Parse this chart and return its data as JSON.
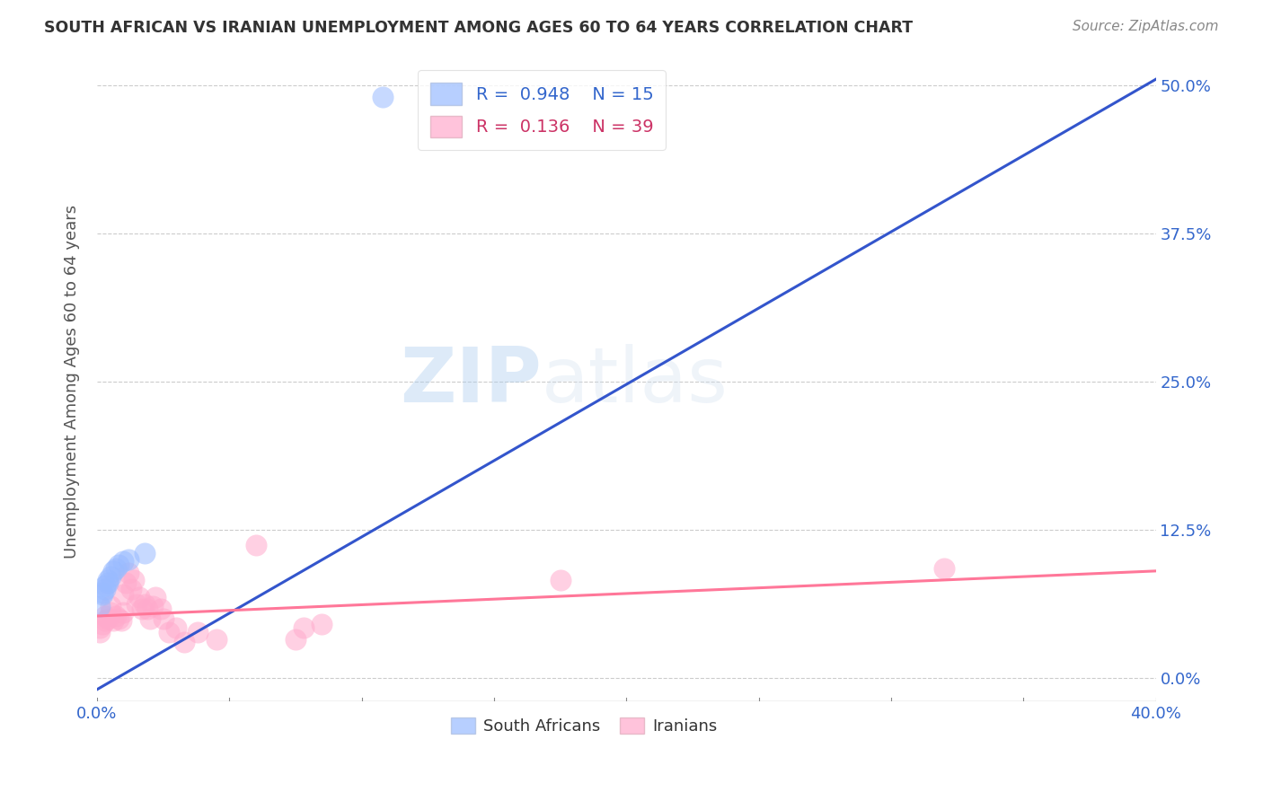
{
  "title": "SOUTH AFRICAN VS IRANIAN UNEMPLOYMENT AMONG AGES 60 TO 64 YEARS CORRELATION CHART",
  "source": "Source: ZipAtlas.com",
  "ylabel": "Unemployment Among Ages 60 to 64 years",
  "xlim": [
    0.0,
    0.4
  ],
  "ylim": [
    -0.02,
    0.52
  ],
  "xtick_vals": [
    0.0,
    0.4
  ],
  "xtick_labels": [
    "0.0%",
    "40.0%"
  ],
  "ytick_vals": [
    0.0,
    0.125,
    0.25,
    0.375,
    0.5
  ],
  "ytick_labels": [
    "0.0%",
    "12.5%",
    "25.0%",
    "37.5%",
    "50.0%"
  ],
  "grid_ytick_vals": [
    0.0,
    0.125,
    0.25,
    0.375,
    0.5
  ],
  "watermark_zip": "ZIP",
  "watermark_atlas": "atlas",
  "sa_color": "#99bbff",
  "ir_color": "#ffaacc",
  "sa_line_color": "#3355cc",
  "ir_line_color": "#ff7799",
  "sa_points": [
    [
      0.001,
      0.06
    ],
    [
      0.002,
      0.07
    ],
    [
      0.002,
      0.072
    ],
    [
      0.003,
      0.075
    ],
    [
      0.003,
      0.078
    ],
    [
      0.004,
      0.08
    ],
    [
      0.004,
      0.082
    ],
    [
      0.005,
      0.085
    ],
    [
      0.006,
      0.09
    ],
    [
      0.007,
      0.092
    ],
    [
      0.008,
      0.095
    ],
    [
      0.01,
      0.098
    ],
    [
      0.012,
      0.1
    ],
    [
      0.018,
      0.105
    ],
    [
      0.108,
      0.49
    ]
  ],
  "ir_points": [
    [
      0.001,
      0.038
    ],
    [
      0.001,
      0.042
    ],
    [
      0.002,
      0.045
    ],
    [
      0.003,
      0.048
    ],
    [
      0.003,
      0.052
    ],
    [
      0.004,
      0.05
    ],
    [
      0.005,
      0.055
    ],
    [
      0.005,
      0.06
    ],
    [
      0.006,
      0.048
    ],
    [
      0.007,
      0.052
    ],
    [
      0.008,
      0.05
    ],
    [
      0.009,
      0.048
    ],
    [
      0.01,
      0.055
    ],
    [
      0.01,
      0.07
    ],
    [
      0.011,
      0.08
    ],
    [
      0.012,
      0.088
    ],
    [
      0.013,
      0.075
    ],
    [
      0.014,
      0.082
    ],
    [
      0.015,
      0.062
    ],
    [
      0.016,
      0.068
    ],
    [
      0.017,
      0.058
    ],
    [
      0.018,
      0.062
    ],
    [
      0.019,
      0.058
    ],
    [
      0.02,
      0.05
    ],
    [
      0.021,
      0.06
    ],
    [
      0.022,
      0.068
    ],
    [
      0.024,
      0.058
    ],
    [
      0.025,
      0.05
    ],
    [
      0.027,
      0.038
    ],
    [
      0.03,
      0.042
    ],
    [
      0.033,
      0.03
    ],
    [
      0.038,
      0.038
    ],
    [
      0.045,
      0.032
    ],
    [
      0.06,
      0.112
    ],
    [
      0.075,
      0.032
    ],
    [
      0.078,
      0.042
    ],
    [
      0.085,
      0.045
    ],
    [
      0.175,
      0.082
    ],
    [
      0.32,
      0.092
    ]
  ],
  "sa_trendline": [
    [
      0.0,
      -0.01
    ],
    [
      0.4,
      0.505
    ]
  ],
  "ir_trendline": [
    [
      0.0,
      0.052
    ],
    [
      0.4,
      0.09
    ]
  ]
}
